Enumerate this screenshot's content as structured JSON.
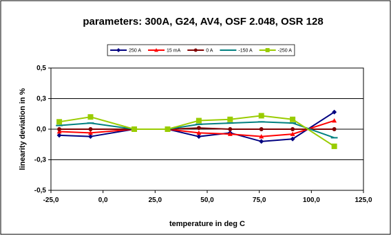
{
  "chart_data": {
    "type": "line",
    "title": "parameters: 300A, G24, AV4, OSF 2.048, OSR 128",
    "xlabel": "temperature in deg C",
    "ylabel": "linearity deviation in %",
    "xlim": [
      -25,
      125
    ],
    "ylim": [
      -0.5,
      0.5
    ],
    "x_ticks": [
      "-25,0",
      "0,0",
      "25,0",
      "50,0",
      "75,0",
      "100,0",
      "125,0"
    ],
    "y_ticks": [
      "0,5",
      "0,3",
      "0,0",
      "-0,3",
      "-0,5"
    ],
    "y_tick_values": [
      0.5,
      0.25,
      0.0,
      -0.25,
      -0.5
    ],
    "grid": "horizontal",
    "legend_position": "top",
    "series": [
      {
        "name": "250 A",
        "color": "#000080",
        "marker": "diamond",
        "x": [
          -21,
          -6,
          15,
          31,
          46,
          61,
          76,
          91,
          111
        ],
        "y": [
          -0.05,
          -0.06,
          0.0,
          0.0,
          -0.06,
          -0.03,
          -0.1,
          -0.08,
          0.14
        ]
      },
      {
        "name": "15 mA",
        "color": "#ff0000",
        "marker": "triangle",
        "x": [
          -21,
          -6,
          15,
          31,
          46,
          61,
          76,
          91,
          111
        ],
        "y": [
          -0.02,
          -0.03,
          0.0,
          0.0,
          -0.03,
          -0.04,
          -0.06,
          -0.04,
          0.07
        ]
      },
      {
        "name": "0 A",
        "color": "#800000",
        "marker": "circle",
        "x": [
          -21,
          -6,
          15,
          31,
          46,
          61,
          76,
          91,
          111
        ],
        "y": [
          0.0,
          0.0,
          0.0,
          0.0,
          0.01,
          0.0,
          0.0,
          0.0,
          0.0
        ]
      },
      {
        "name": "-150 A",
        "color": "#008080",
        "marker": "dash",
        "x": [
          -21,
          -6,
          15,
          31,
          46,
          61,
          76,
          91,
          111
        ],
        "y": [
          0.03,
          0.05,
          0.0,
          0.0,
          0.04,
          0.05,
          0.06,
          0.05,
          -0.07
        ]
      },
      {
        "name": "-250 A",
        "color": "#99cc00",
        "marker": "square",
        "x": [
          -21,
          -6,
          15,
          31,
          46,
          61,
          76,
          91,
          111
        ],
        "y": [
          0.06,
          0.1,
          0.0,
          0.0,
          0.07,
          0.08,
          0.11,
          0.08,
          -0.14
        ]
      }
    ]
  }
}
